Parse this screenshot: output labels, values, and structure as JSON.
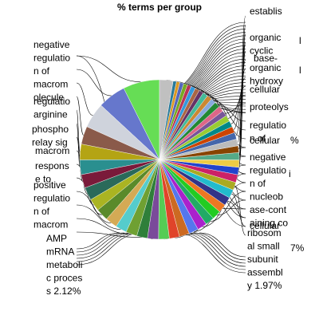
{
  "chart_data": {
    "type": "pie",
    "title": "% terms per group",
    "slice_colors": [
      "#66dd55",
      "#6677cc",
      "#cfd3dc",
      "#8a5a4a",
      "#b4a414",
      "#2a8f8f",
      "#7a1a3a",
      "#2a6a5a",
      "#aab422",
      "#5a8a2a",
      "#d4aa55",
      "#55cccc",
      "#6fa032",
      "#2f7f3a",
      "#7a4a9a",
      "#55cc55",
      "#e0442a",
      "#cc6a22",
      "#5577ee",
      "#aa22cc",
      "#22aa66",
      "#22cc22",
      "#ee7722",
      "#333388",
      "#22bbcc",
      "#aaaa22",
      "#cc2266",
      "#2244cc",
      "#eecc44",
      "#55aa88",
      "#884400",
      "#bbbbbb",
      "#4466aa",
      "#cc4400",
      "#008888",
      "#99cc33",
      "#775599",
      "#dd6688",
      "#228833",
      "#88aadd",
      "#cc8833",
      "#44bb99",
      "#663366",
      "#aa6644",
      "#3399dd",
      "#bb3355",
      "#77aa22",
      "#5566bb",
      "#dd9922",
      "#2a7a9a",
      "#c0c0c0"
    ],
    "slices": [
      {
        "label": "negative regulation of macromolecule ...",
        "value": 6.5
      },
      {
        "label": "regulation of arginine ...",
        "value": 5.0
      },
      {
        "label": "phosphorelay signal ...",
        "value": 4.5
      },
      {
        "label": "macromolecule ...",
        "value": 3.2
      },
      {
        "label": "response to ...",
        "value": 2.8
      },
      {
        "label": "positive regulation of macromolecule ...",
        "value": 2.6
      },
      {
        "label": "",
        "value": 2.4
      },
      {
        "label": "",
        "value": 2.3
      },
      {
        "label": "",
        "value": 2.2
      },
      {
        "label": "",
        "value": 2.2
      },
      {
        "label": "AMP mRNA metabolic process 2.12%",
        "value": 2.12
      },
      {
        "label": "",
        "value": 2.0
      },
      {
        "label": "",
        "value": 2.0
      },
      {
        "label": "",
        "value": 1.9
      },
      {
        "label": "ribosomal small subunit assembly 1.97%",
        "value": 1.97
      },
      {
        "label": "",
        "value": 1.9
      },
      {
        "label": "",
        "value": 1.8
      },
      {
        "label": "",
        "value": 1.8
      },
      {
        "label": "",
        "value": 1.7
      },
      {
        "label": "",
        "value": 1.7
      },
      {
        "label": "",
        "value": 1.6
      },
      {
        "label": "cellular ...",
        "value": 1.6
      },
      {
        "label": "",
        "value": 1.5
      },
      {
        "label": "",
        "value": 1.5
      },
      {
        "label": "negative regulation of nucleobase-containing compound ...",
        "value": 1.5
      },
      {
        "label": "",
        "value": 1.4
      },
      {
        "label": "",
        "value": 1.4
      },
      {
        "label": "",
        "value": 1.3
      },
      {
        "label": "",
        "value": 1.3
      },
      {
        "label": "",
        "value": 1.3
      },
      {
        "label": "",
        "value": 1.2
      },
      {
        "label": "regulation of ...",
        "value": 1.2
      },
      {
        "label": "",
        "value": 1.2
      },
      {
        "label": "",
        "value": 1.1
      },
      {
        "label": "proteolysis ...",
        "value": 1.1
      },
      {
        "label": "",
        "value": 1.1
      },
      {
        "label": "",
        "value": 1.0
      },
      {
        "label": "",
        "value": 1.0
      },
      {
        "label": "cellular ...",
        "value": 1.0
      },
      {
        "label": "organic hydroxy ...",
        "value": 0.9
      },
      {
        "label": "",
        "value": 0.9
      },
      {
        "label": "base-...",
        "value": 0.9
      },
      {
        "label": "",
        "value": 0.8
      },
      {
        "label": "organic cyclic ...",
        "value": 0.8
      },
      {
        "label": "",
        "value": 0.8
      },
      {
        "label": "",
        "value": 0.7
      },
      {
        "label": "establis...",
        "value": 0.7
      },
      {
        "label": "",
        "value": 0.7
      },
      {
        "label": "",
        "value": 0.6
      },
      {
        "label": "",
        "value": 0.6
      },
      {
        "label": "",
        "value": 2.4
      }
    ]
  },
  "labels": {
    "left": [
      {
        "name": "left-label-negative-regulation",
        "lines": [
          "negative",
          "regulatio",
          "n of",
          "macrom",
          "olecule"
        ]
      },
      {
        "name": "left-label-regulation-arginine",
        "lines": [
          "regulatio",
          "arginine"
        ]
      },
      {
        "name": "left-label-phosphorelay",
        "lines": [
          "phospho",
          "relay sig"
        ]
      },
      {
        "name": "left-label-macromolecule",
        "lines": [
          "macrom"
        ]
      },
      {
        "name": "left-label-response",
        "lines": [
          "respons",
          "e to"
        ]
      },
      {
        "name": "left-label-positive-regulation",
        "lines": [
          "positive",
          "regulatio",
          "n of",
          "macrom"
        ]
      },
      {
        "name": "left-label-amp-mrna",
        "lines": [
          "AMP",
          "mRNA",
          "metaboli",
          "c proces",
          "s 2.12%"
        ]
      }
    ],
    "right": [
      {
        "name": "right-label-establis",
        "lines": [
          "establis"
        ]
      },
      {
        "name": "right-label-organic-cyclic",
        "lines": [
          "organic",
          "cyclic"
        ]
      },
      {
        "name": "right-label-base",
        "lines": [
          "base-"
        ]
      },
      {
        "name": "right-label-organic-hydroxy",
        "lines": [
          "organic",
          "hydroxy"
        ]
      },
      {
        "name": "right-label-cellular-1",
        "lines": [
          "cellular"
        ]
      },
      {
        "name": "right-label-proteolysis",
        "lines": [
          "proteolys"
        ]
      },
      {
        "name": "right-label-regulation",
        "lines": [
          "regulatio",
          "n of"
        ]
      },
      {
        "name": "right-label-cellular-2",
        "lines": [
          "cellular"
        ]
      },
      {
        "name": "right-label-negative-regulation",
        "lines": [
          "negative",
          "regulatio",
          "n of",
          "nucleob",
          "ase-cont",
          "aining co"
        ]
      },
      {
        "name": "right-label-cellular-3",
        "lines": [
          "cellular"
        ]
      },
      {
        "name": "right-label-ribosomal",
        "lines": [
          "ribosom",
          "al small",
          "subunit",
          "assembl",
          "y 1.97%"
        ]
      },
      {
        "name": "right-label-fragment-1",
        "lines": [
          "l"
        ]
      },
      {
        "name": "right-label-fragment-2",
        "lines": [
          "l"
        ]
      },
      {
        "name": "right-label-fragment-3",
        "lines": [
          "%"
        ]
      },
      {
        "name": "right-label-fragment-4",
        "lines": [
          "i"
        ]
      },
      {
        "name": "right-label-fragment-5",
        "lines": [
          "7%"
        ]
      }
    ]
  }
}
